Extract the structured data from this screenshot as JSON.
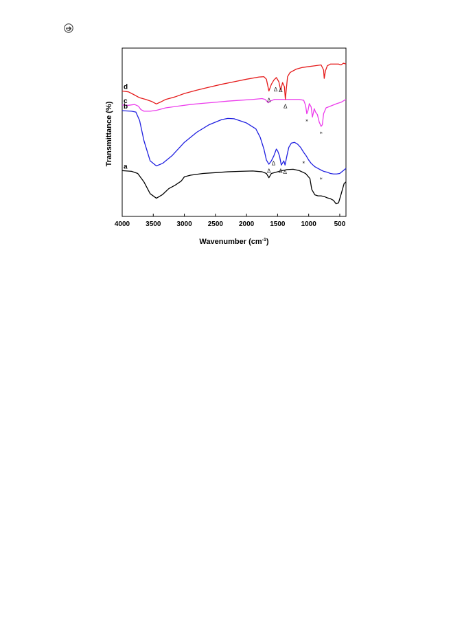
{
  "page": {
    "mark_icon": "circle-arrow-icon"
  },
  "chart_data": {
    "type": "line",
    "xlabel": "Wavenumber (cm",
    "xlabel_sup": "-1",
    "xlabel_close": ")",
    "ylabel": "Transmittance (%)",
    "xlim": [
      4000,
      400
    ],
    "x_reversed": true,
    "xticks": [
      4000,
      3500,
      3000,
      2500,
      2000,
      1500,
      1000,
      500
    ],
    "yticks_shown": false,
    "grid": false,
    "legend": "none",
    "ylim": [
      0,
      10
    ],
    "series": [
      {
        "name": "a",
        "color": "#000000",
        "points": [
          [
            4000,
            2.72
          ],
          [
            3850,
            2.68
          ],
          [
            3750,
            2.55
          ],
          [
            3650,
            2.05
          ],
          [
            3550,
            1.35
          ],
          [
            3450,
            1.08
          ],
          [
            3350,
            1.3
          ],
          [
            3250,
            1.65
          ],
          [
            3150,
            1.85
          ],
          [
            3050,
            2.1
          ],
          [
            3000,
            2.35
          ],
          [
            2900,
            2.45
          ],
          [
            2700,
            2.55
          ],
          [
            2500,
            2.6
          ],
          [
            2300,
            2.65
          ],
          [
            2100,
            2.68
          ],
          [
            1900,
            2.7
          ],
          [
            1750,
            2.65
          ],
          [
            1680,
            2.55
          ],
          [
            1640,
            2.3
          ],
          [
            1600,
            2.55
          ],
          [
            1550,
            2.6
          ],
          [
            1450,
            2.7
          ],
          [
            1350,
            2.78
          ],
          [
            1250,
            2.8
          ],
          [
            1150,
            2.72
          ],
          [
            1050,
            2.55
          ],
          [
            980,
            2.25
          ],
          [
            950,
            1.6
          ],
          [
            900,
            1.28
          ],
          [
            850,
            1.22
          ],
          [
            800,
            1.22
          ],
          [
            750,
            1.18
          ],
          [
            700,
            1.1
          ],
          [
            650,
            1.05
          ],
          [
            600,
            0.95
          ],
          [
            560,
            0.75
          ],
          [
            520,
            0.8
          ],
          [
            480,
            1.3
          ],
          [
            430,
            1.95
          ],
          [
            400,
            2.05
          ]
        ]
      },
      {
        "name": "b",
        "color": "#1f1fe0",
        "points": [
          [
            4000,
            6.28
          ],
          [
            3850,
            6.25
          ],
          [
            3780,
            6.2
          ],
          [
            3720,
            5.7
          ],
          [
            3650,
            4.5
          ],
          [
            3550,
            3.3
          ],
          [
            3450,
            3.0
          ],
          [
            3350,
            3.15
          ],
          [
            3200,
            3.6
          ],
          [
            3000,
            4.4
          ],
          [
            2800,
            5.0
          ],
          [
            2600,
            5.45
          ],
          [
            2400,
            5.75
          ],
          [
            2300,
            5.82
          ],
          [
            2200,
            5.8
          ],
          [
            2000,
            5.55
          ],
          [
            1850,
            5.2
          ],
          [
            1780,
            4.7
          ],
          [
            1720,
            4.0
          ],
          [
            1680,
            3.35
          ],
          [
            1640,
            3.1
          ],
          [
            1600,
            3.3
          ],
          [
            1560,
            3.6
          ],
          [
            1520,
            4.0
          ],
          [
            1500,
            3.9
          ],
          [
            1470,
            3.6
          ],
          [
            1440,
            3.05
          ],
          [
            1400,
            3.3
          ],
          [
            1380,
            3.05
          ],
          [
            1350,
            3.6
          ],
          [
            1320,
            4.1
          ],
          [
            1280,
            4.35
          ],
          [
            1230,
            4.4
          ],
          [
            1180,
            4.3
          ],
          [
            1130,
            4.1
          ],
          [
            1080,
            3.8
          ],
          [
            1040,
            3.6
          ],
          [
            1000,
            3.35
          ],
          [
            960,
            3.15
          ],
          [
            900,
            2.95
          ],
          [
            850,
            2.85
          ],
          [
            800,
            2.75
          ],
          [
            760,
            2.68
          ],
          [
            700,
            2.62
          ],
          [
            650,
            2.55
          ],
          [
            600,
            2.52
          ],
          [
            550,
            2.52
          ],
          [
            500,
            2.55
          ],
          [
            450,
            2.7
          ],
          [
            400,
            2.85
          ]
        ]
      },
      {
        "name": "c",
        "color": "#ec3bec",
        "points": [
          [
            4000,
            6.62
          ],
          [
            3900,
            6.6
          ],
          [
            3800,
            6.65
          ],
          [
            3740,
            6.55
          ],
          [
            3700,
            6.35
          ],
          [
            3650,
            6.25
          ],
          [
            3550,
            6.25
          ],
          [
            3450,
            6.3
          ],
          [
            3300,
            6.45
          ],
          [
            3100,
            6.55
          ],
          [
            2900,
            6.65
          ],
          [
            2700,
            6.72
          ],
          [
            2500,
            6.78
          ],
          [
            2300,
            6.85
          ],
          [
            2100,
            6.9
          ],
          [
            1900,
            6.95
          ],
          [
            1750,
            7.0
          ],
          [
            1700,
            6.95
          ],
          [
            1650,
            6.75
          ],
          [
            1620,
            6.85
          ],
          [
            1550,
            6.95
          ],
          [
            1400,
            6.95
          ],
          [
            1250,
            6.95
          ],
          [
            1150,
            6.95
          ],
          [
            1080,
            6.9
          ],
          [
            1050,
            6.6
          ],
          [
            1030,
            6.1
          ],
          [
            1010,
            6.3
          ],
          [
            990,
            6.7
          ],
          [
            960,
            6.5
          ],
          [
            940,
            5.9
          ],
          [
            910,
            6.4
          ],
          [
            890,
            6.2
          ],
          [
            860,
            6.05
          ],
          [
            830,
            5.6
          ],
          [
            800,
            5.35
          ],
          [
            780,
            5.45
          ],
          [
            760,
            6.1
          ],
          [
            720,
            6.45
          ],
          [
            650,
            6.55
          ],
          [
            550,
            6.7
          ],
          [
            480,
            6.78
          ],
          [
            400,
            6.95
          ]
        ]
      },
      {
        "name": "d",
        "color": "#e51919",
        "points": [
          [
            4000,
            7.45
          ],
          [
            3900,
            7.4
          ],
          [
            3820,
            7.25
          ],
          [
            3720,
            7.05
          ],
          [
            3620,
            6.95
          ],
          [
            3520,
            6.82
          ],
          [
            3450,
            6.68
          ],
          [
            3380,
            6.8
          ],
          [
            3300,
            6.95
          ],
          [
            3150,
            7.1
          ],
          [
            3000,
            7.3
          ],
          [
            2800,
            7.5
          ],
          [
            2600,
            7.68
          ],
          [
            2400,
            7.85
          ],
          [
            2200,
            8.0
          ],
          [
            2000,
            8.15
          ],
          [
            1800,
            8.28
          ],
          [
            1720,
            8.3
          ],
          [
            1680,
            8.15
          ],
          [
            1640,
            7.45
          ],
          [
            1600,
            7.85
          ],
          [
            1560,
            8.1
          ],
          [
            1520,
            8.25
          ],
          [
            1480,
            8.0
          ],
          [
            1450,
            7.5
          ],
          [
            1420,
            7.95
          ],
          [
            1390,
            7.7
          ],
          [
            1375,
            6.95
          ],
          [
            1360,
            7.55
          ],
          [
            1340,
            8.3
          ],
          [
            1300,
            8.55
          ],
          [
            1200,
            8.75
          ],
          [
            1100,
            8.85
          ],
          [
            1000,
            8.9
          ],
          [
            900,
            8.95
          ],
          [
            800,
            9.0
          ],
          [
            760,
            8.7
          ],
          [
            750,
            8.2
          ],
          [
            730,
            8.65
          ],
          [
            700,
            8.95
          ],
          [
            650,
            9.05
          ],
          [
            580,
            9.05
          ],
          [
            520,
            9.05
          ],
          [
            480,
            9.0
          ],
          [
            440,
            9.1
          ],
          [
            400,
            9.05
          ]
        ]
      }
    ],
    "annotations": [
      {
        "symbol": "Δ",
        "series": "d",
        "x": 1640,
        "y": 6.95
      },
      {
        "symbol": "Δ",
        "series": "d",
        "x": 1530,
        "y": 7.6
      },
      {
        "symbol": "Δ",
        "series": "d",
        "x": 1450,
        "y": 7.55
      },
      {
        "symbol": "Δ",
        "series": "d",
        "x": 1375,
        "y": 6.6
      },
      {
        "symbol": "Δ",
        "series": "b",
        "x": 1640,
        "y": 2.75
      },
      {
        "symbol": "Δ",
        "series": "b",
        "x": 1565,
        "y": 3.2
      },
      {
        "symbol": "Δ",
        "series": "b",
        "x": 1450,
        "y": 2.75
      },
      {
        "symbol": "Δ",
        "series": "b",
        "x": 1380,
        "y": 2.7
      },
      {
        "symbol": "*",
        "series": "c",
        "x": 1030,
        "y": 5.7
      },
      {
        "symbol": "*",
        "series": "c",
        "x": 800,
        "y": 4.95
      },
      {
        "symbol": "*",
        "series": "b",
        "x": 1080,
        "y": 3.2
      },
      {
        "symbol": "*",
        "series": "b",
        "x": 800,
        "y": 2.25
      }
    ]
  }
}
